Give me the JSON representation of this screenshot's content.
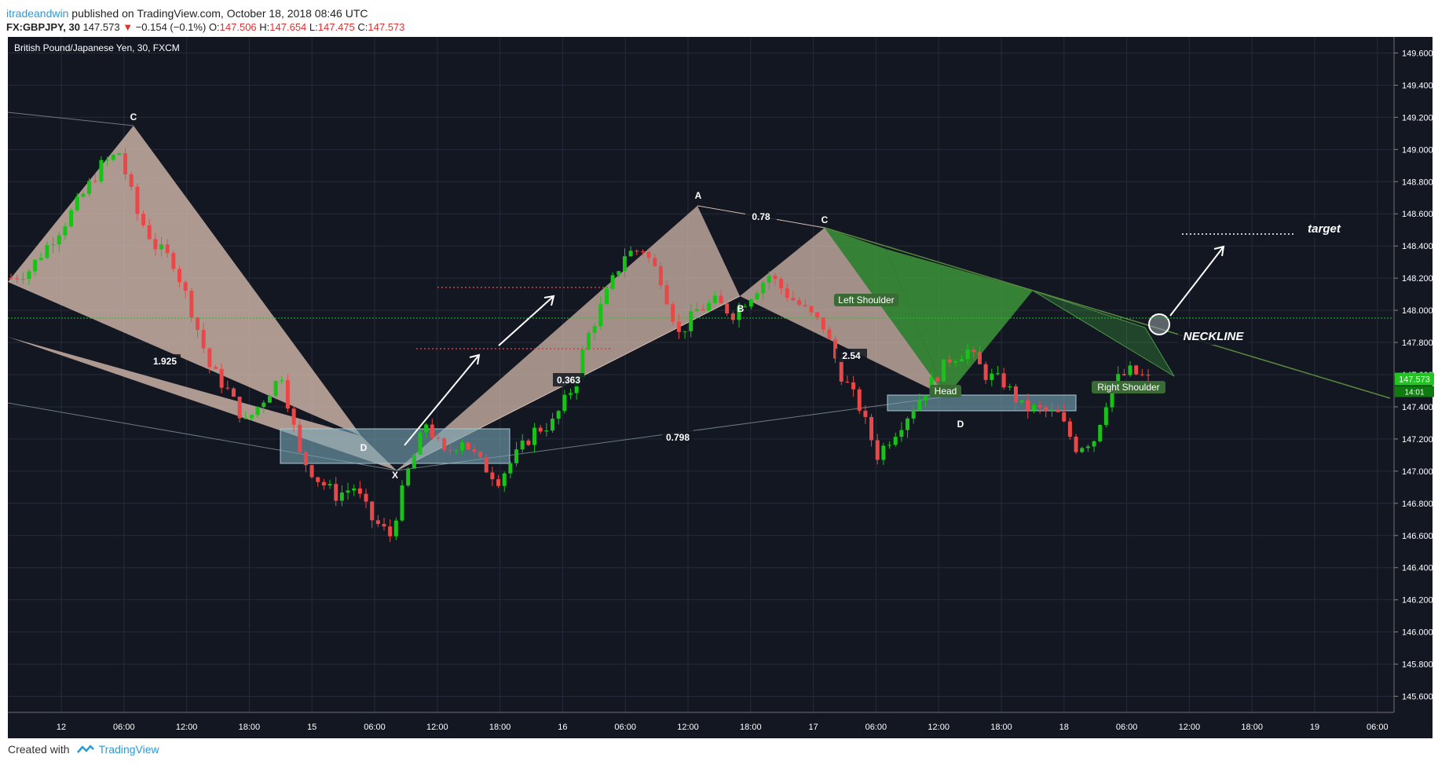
{
  "header": {
    "author": "itradeandwin",
    "published_text": "published on TradingView.com, October 18, 2018 08:46 UTC",
    "symbol_label": "FX:GBPJPY, 30",
    "price": "147.573",
    "change_arrow": "▼",
    "change": "−0.154 (−0.1%)",
    "open_label": "O:",
    "open": "147.506",
    "high_label": "H:",
    "high": "147.654",
    "low_label": "L:",
    "low": "147.475",
    "close_label": "C:",
    "close": "147.573"
  },
  "footer": {
    "created_with": "Created with",
    "brand": "TradingView"
  },
  "colors": {
    "background": "#131722",
    "grid": "#262b3b",
    "up": "#18c218",
    "down": "#ea4848",
    "pattern_fill": "#d8beb0",
    "hs_fill": "#3d9a3b",
    "box_fill": "#7aa6b8",
    "price_line": "#22c422"
  },
  "chart_data": {
    "type": "candlestick",
    "title": "British Pound/Japanese Yen, 30, FXCM",
    "x_tick_labels": [
      "12",
      "06:00",
      "12:00",
      "18:00",
      "15",
      "06:00",
      "12:00",
      "18:00",
      "16",
      "06:00",
      "12:00",
      "18:00",
      "17",
      "06:00",
      "12:00",
      "18:00",
      "18",
      "06:00",
      "12:00",
      "18:00",
      "19",
      "06:00"
    ],
    "y_tick_labels": [
      "149.600",
      "149.400",
      "149.200",
      "149.000",
      "148.800",
      "148.600",
      "148.400",
      "148.200",
      "148.000",
      "147.800",
      "147.600",
      "147.400",
      "147.200",
      "147.000",
      "146.800",
      "146.600",
      "146.400",
      "146.200",
      "146.000",
      "145.800",
      "145.600"
    ],
    "ylim": [
      145.5,
      149.7
    ],
    "last_price": "147.573",
    "countdown": "14:01",
    "price_path": [
      148.2,
      148.25,
      148.4,
      148.55,
      148.72,
      148.9,
      148.98,
      148.6,
      148.4,
      148.3,
      148.0,
      147.65,
      147.5,
      147.3,
      147.45,
      147.6,
      147.1,
      146.95,
      146.85,
      146.9,
      146.7,
      146.6,
      147.0,
      147.3,
      147.1,
      147.2,
      147.05,
      146.95,
      147.1,
      147.25,
      147.3,
      147.5,
      147.85,
      148.1,
      148.35,
      148.38,
      148.2,
      147.85,
      148.0,
      148.05,
      147.98,
      148.1,
      148.22,
      148.1,
      148.0,
      147.9,
      147.6,
      147.4,
      147.1,
      147.25,
      147.4,
      147.55,
      147.7,
      147.75,
      147.6,
      147.55,
      147.4,
      147.38,
      147.35,
      147.15,
      147.2,
      147.55,
      147.62,
      147.57
    ],
    "annotations": {
      "points": [
        "C",
        "D",
        "X",
        "A",
        "B",
        "C",
        "D"
      ],
      "ratios": [
        "1.925",
        "0.363",
        "0.798",
        "0.78",
        "2.54"
      ],
      "hs_labels": [
        "Left Shoulder",
        "Head",
        "Right Shoulder"
      ],
      "neckline": "NECKLINE",
      "target": "target"
    }
  }
}
